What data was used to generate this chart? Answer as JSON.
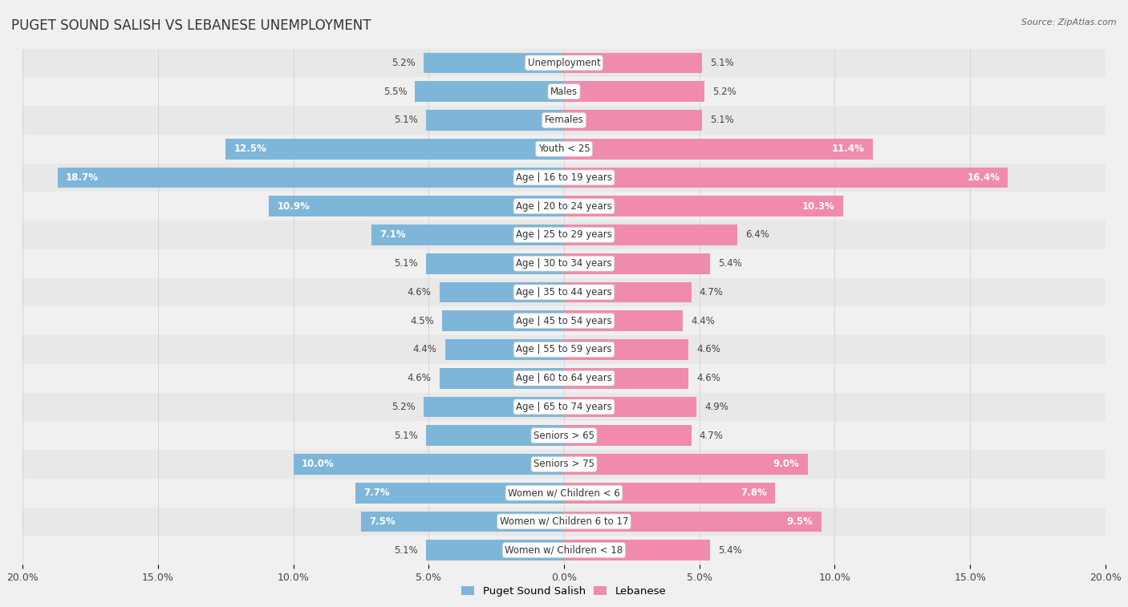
{
  "title": "PUGET SOUND SALISH VS LEBANESE UNEMPLOYMENT",
  "source": "Source: ZipAtlas.com",
  "categories": [
    "Unemployment",
    "Males",
    "Females",
    "Youth < 25",
    "Age | 16 to 19 years",
    "Age | 20 to 24 years",
    "Age | 25 to 29 years",
    "Age | 30 to 34 years",
    "Age | 35 to 44 years",
    "Age | 45 to 54 years",
    "Age | 55 to 59 years",
    "Age | 60 to 64 years",
    "Age | 65 to 74 years",
    "Seniors > 65",
    "Seniors > 75",
    "Women w/ Children < 6",
    "Women w/ Children 6 to 17",
    "Women w/ Children < 18"
  ],
  "left_values": [
    5.2,
    5.5,
    5.1,
    12.5,
    18.7,
    10.9,
    7.1,
    5.1,
    4.6,
    4.5,
    4.4,
    4.6,
    5.2,
    5.1,
    10.0,
    7.7,
    7.5,
    5.1
  ],
  "right_values": [
    5.1,
    5.2,
    5.1,
    11.4,
    16.4,
    10.3,
    6.4,
    5.4,
    4.7,
    4.4,
    4.6,
    4.6,
    4.9,
    4.7,
    9.0,
    7.8,
    9.5,
    5.4
  ],
  "left_color": "#7EB6D9",
  "right_color": "#F08BAC",
  "left_label": "Puget Sound Salish",
  "right_label": "Lebanese",
  "xlim": 20.0,
  "row_bg_odd": "#e8e8e8",
  "row_bg_even": "#f0f0f0",
  "bar_bg": "#ffffff",
  "label_fontsize": 8.5,
  "title_fontsize": 12,
  "axis_fontsize": 9,
  "value_inside_threshold": 7.0
}
